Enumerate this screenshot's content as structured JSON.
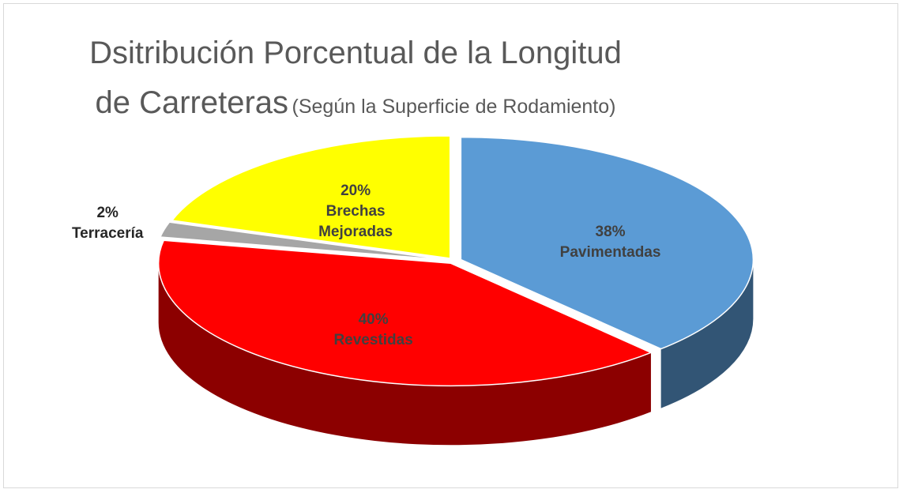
{
  "chart_data": {
    "type": "pie",
    "title": "Dsitribución Porcentual de la Longitud de Carreteras",
    "subtitle": "(Según la Superficie de Rodamiento)",
    "categories": [
      "Pavimentadas",
      "Revestidas",
      "Terracería",
      "Brechas Mejoradas"
    ],
    "values": [
      38,
      40,
      2,
      20
    ],
    "value_labels": [
      "38%",
      "40%",
      "2%",
      "20%"
    ],
    "colors": [
      "#5b9bd5",
      "#ff0000",
      "#a6a6a6",
      "#ffff00"
    ]
  }
}
